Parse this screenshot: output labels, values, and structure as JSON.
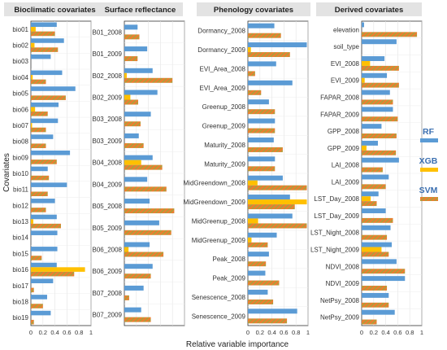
{
  "figure": {
    "ylabel": "Covariates",
    "xlabel": "Relative variable importance"
  },
  "legend": {
    "items": [
      {
        "label": "RF",
        "color": "#5b9bd5"
      },
      {
        "label": "XGB",
        "color": "#ffc000"
      },
      {
        "label": "SVM",
        "color": "#ed7d31",
        "hatch_color": "#a9a23c"
      }
    ]
  },
  "colors": {
    "rf": "#5b9bd5",
    "xgb": "#ffc000",
    "svm": "#ed7d31",
    "svm_hatch": "#a9a23c",
    "header_bg": "#e3e3e3"
  },
  "chart_data": [
    {
      "type": "bar",
      "orientation": "horizontal",
      "title": "Bioclimatic covariates",
      "xlim": [
        0,
        1
      ],
      "xticks": [
        "0",
        "0.2",
        "0.4",
        "0.6",
        "0.8",
        "1"
      ],
      "categories": [
        "bio01",
        "bio02",
        "bio03",
        "bio04",
        "bio05",
        "bio06",
        "bio07",
        "bio08",
        "bio09",
        "bio10",
        "bio11",
        "bio12",
        "bio13",
        "bio14",
        "bio15",
        "bio16",
        "bio17",
        "bio18",
        "bio19"
      ],
      "series": [
        {
          "name": "RF",
          "values": [
            0.43,
            0.55,
            0.33,
            0.52,
            0.74,
            0.46,
            0.45,
            0.37,
            0.65,
            0.28,
            0.6,
            0.4,
            0.43,
            0.44,
            0.44,
            0.43,
            0.37,
            0.27,
            0.33
          ]
        },
        {
          "name": "XGB",
          "values": [
            0.08,
            0.06,
            0.0,
            0.03,
            0.0,
            0.07,
            0.02,
            0.0,
            0.0,
            0.0,
            0.0,
            0.0,
            0.04,
            0.0,
            0.0,
            0.9,
            0.0,
            0.0,
            0.0
          ]
        },
        {
          "name": "SVM",
          "values": [
            0.4,
            0.45,
            0.0,
            0.25,
            0.58,
            0.28,
            0.25,
            0.25,
            0.43,
            0.3,
            0.28,
            0.25,
            0.5,
            0.0,
            0.18,
            0.72,
            0.05,
            0.2,
            0.05
          ]
        }
      ]
    },
    {
      "type": "bar",
      "orientation": "horizontal",
      "title": "Surface reflectance",
      "xlim": [
        0,
        1
      ],
      "xticks": [],
      "categories": [
        "B01_2008",
        "B01_2009",
        "B02_2008",
        "B02_2009",
        "B03_2008",
        "B03_2009",
        "B04_2008",
        "B04_2009",
        "B05_2008",
        "B05_2009",
        "B06_2008",
        "B06_2009",
        "B07_2008",
        "B07_2009"
      ],
      "series": [
        {
          "name": "RF",
          "values": [
            0.22,
            0.38,
            0.47,
            0.55,
            0.44,
            0.24,
            0.47,
            0.38,
            0.42,
            0.58,
            0.42,
            0.47,
            0.32,
            0.28
          ]
        },
        {
          "name": "XGB",
          "values": [
            0.0,
            0.0,
            0.04,
            0.1,
            0.0,
            0.0,
            0.28,
            0.0,
            0.0,
            0.0,
            0.07,
            0.0,
            0.0,
            0.0
          ]
        },
        {
          "name": "SVM",
          "values": [
            0.25,
            0.22,
            0.8,
            0.23,
            0.27,
            0.32,
            0.63,
            0.7,
            0.83,
            0.78,
            0.65,
            0.44,
            0.08,
            0.44
          ]
        }
      ]
    },
    {
      "type": "bar",
      "orientation": "horizontal",
      "title": "Phenology covariates",
      "xlim": [
        0,
        1
      ],
      "xticks": [
        "0",
        "0.2",
        "0.4",
        "0.6",
        "0.8",
        "1"
      ],
      "categories": [
        "Dormancy_2008",
        "Dormancy_2009",
        "EVI_Area_2008",
        "EVI_Area_2009",
        "Greenup_2008",
        "Greenup_2009",
        "Maturity_2008",
        "Maturity_2009",
        "MidGreendown_2008",
        "MidGreendown_2009",
        "MidGreenup_2008",
        "MidGreenup_2009",
        "Peak_2008",
        "Peak_2009",
        "Senescence_2008",
        "Senescence_2009"
      ],
      "series": [
        {
          "name": "RF",
          "values": [
            0.44,
            0.98,
            0.47,
            0.74,
            0.35,
            0.45,
            0.43,
            0.45,
            0.58,
            0.7,
            0.74,
            0.48,
            0.35,
            0.29,
            0.33,
            0.82
          ]
        },
        {
          "name": "XGB",
          "values": [
            0.0,
            0.05,
            0.0,
            0.0,
            0.0,
            0.0,
            0.0,
            0.0,
            0.16,
            0.98,
            0.17,
            0.06,
            0.0,
            0.0,
            0.0,
            0.0
          ]
        },
        {
          "name": "SVM",
          "values": [
            0.55,
            0.7,
            0.12,
            0.22,
            0.45,
            0.45,
            0.58,
            0.45,
            0.98,
            0.78,
            0.98,
            0.33,
            0.3,
            0.52,
            0.42,
            0.65
          ]
        }
      ]
    },
    {
      "type": "bar",
      "orientation": "horizontal",
      "title": "Derived covariates",
      "xlim": [
        0,
        1
      ],
      "xticks": [
        "0",
        "0.2",
        "0.4",
        "0.6",
        "0.8",
        "1"
      ],
      "categories": [
        "elevation",
        "soil_type",
        "EVI_2008",
        "EVI_2009",
        "FAPAR_2008",
        "FAPAR_2009",
        "GPP_2008",
        "GPP_2009",
        "LAI_2008",
        "LAI_2009",
        "LST_Day_2008",
        "LST_Day_2009",
        "LST_Night_2008",
        "LST_Night_2009",
        "NDVI_2008",
        "NDVI_2009",
        "NetPsy_2008",
        "NetPsy_2009"
      ],
      "series": [
        {
          "name": "RF",
          "values": [
            0.04,
            0.58,
            0.38,
            0.42,
            0.47,
            0.52,
            0.33,
            0.27,
            0.62,
            0.45,
            0.28,
            0.4,
            0.48,
            0.5,
            0.58,
            0.72,
            0.45,
            0.55
          ]
        },
        {
          "name": "XGB",
          "values": [
            0.0,
            0.0,
            0.14,
            0.05,
            0.0,
            0.0,
            0.0,
            0.08,
            0.0,
            0.0,
            0.15,
            0.0,
            0.0,
            0.33,
            0.0,
            0.0,
            0.0,
            0.0
          ]
        },
        {
          "name": "SVM",
          "values": [
            0.92,
            0.0,
            0.62,
            0.62,
            0.52,
            0.6,
            0.58,
            0.57,
            0.35,
            0.4,
            0.25,
            0.52,
            0.42,
            0.45,
            0.72,
            0.42,
            0.45,
            0.25
          ]
        }
      ]
    }
  ]
}
